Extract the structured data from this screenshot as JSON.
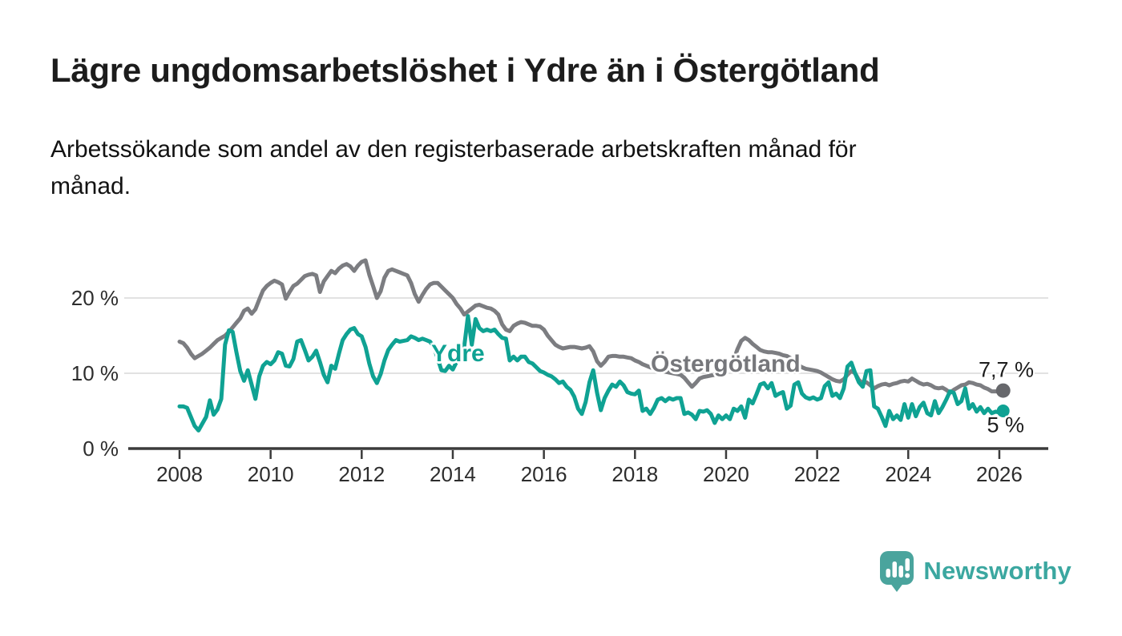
{
  "header": {
    "title": "Lägre ungdomsarbetslöshet i Ydre än i Östergötland",
    "subtitle": "Arbetssökande som andel av den registerbaserade arbetskraften månad för månad."
  },
  "chart_data": {
    "type": "line",
    "title": "Lägre ungdomsarbetslöshet i Ydre än i Östergötland",
    "subtitle": "Arbetssökande som andel av den registerbaserade arbetskraften månad för månad.",
    "unit": "%",
    "x_start": "2008-01",
    "x_end": "2026-02",
    "x_step": "1 month",
    "x_ticks": [
      2008,
      2010,
      2012,
      2014,
      2016,
      2018,
      2020,
      2022,
      2024,
      2026
    ],
    "y_ticks": [
      {
        "value": 0,
        "label": "0 %"
      },
      {
        "value": 10,
        "label": "10 %"
      },
      {
        "value": 20,
        "label": "20 %"
      }
    ],
    "ylim": [
      0,
      26.5
    ],
    "grid": true,
    "legend": "inline-labels",
    "series": [
      {
        "name": "Ydre",
        "color": "#0fa293",
        "end_label": "5 %",
        "last_value": 5.0,
        "values": [
          5.6,
          5.6,
          5.4,
          4.2,
          3.0,
          2.4,
          3.3,
          4.2,
          6.4,
          4.5,
          5.2,
          6.6,
          13.8,
          15.7,
          15.5,
          12.8,
          10.3,
          9.0,
          10.4,
          8.5,
          6.6,
          9.6,
          11.0,
          11.5,
          11.2,
          11.7,
          12.8,
          12.6,
          11.0,
          10.9,
          11.9,
          14.2,
          14.4,
          13.1,
          11.7,
          12.2,
          13.0,
          11.5,
          9.8,
          8.8,
          11.0,
          10.6,
          12.6,
          14.4,
          15.2,
          15.8,
          16.0,
          15.2,
          14.9,
          13.5,
          11.3,
          9.6,
          8.7,
          9.9,
          11.7,
          13.1,
          13.8,
          14.4,
          14.2,
          14.3,
          14.4,
          14.9,
          14.7,
          14.4,
          14.6,
          14.4,
          14.2,
          13.5,
          12.0,
          10.4,
          10.3,
          11.0,
          10.5,
          11.5,
          12.5,
          13.5,
          17.6,
          13.8,
          17.2,
          16.0,
          15.6,
          15.8,
          15.6,
          15.8,
          15.2,
          14.7,
          14.6,
          11.7,
          12.2,
          11.7,
          12.2,
          12.2,
          11.5,
          11.3,
          10.8,
          10.3,
          10.1,
          9.8,
          9.6,
          9.2,
          8.7,
          8.9,
          8.2,
          7.8,
          6.9,
          5.3,
          4.6,
          6.2,
          8.8,
          10.4,
          7.4,
          5.1,
          6.7,
          7.7,
          8.5,
          8.2,
          8.9,
          8.4,
          7.5,
          7.3,
          7.2,
          7.7,
          5.0,
          5.3,
          4.6,
          5.4,
          6.5,
          6.7,
          6.3,
          6.7,
          6.5,
          6.7,
          6.7,
          4.6,
          4.8,
          4.5,
          3.9,
          5.0,
          4.9,
          5.1,
          4.6,
          3.4,
          4.4,
          3.9,
          4.4,
          3.9,
          5.3,
          5.0,
          5.6,
          4.1,
          6.5,
          6.0,
          7.2,
          8.5,
          8.7,
          8.0,
          8.7,
          7.0,
          7.3,
          7.5,
          5.3,
          5.7,
          8.5,
          8.8,
          7.3,
          6.8,
          6.6,
          6.8,
          6.5,
          6.7,
          8.3,
          8.8,
          7.0,
          7.3,
          6.7,
          8.0,
          10.9,
          11.4,
          10.0,
          8.8,
          8.2,
          10.3,
          10.4,
          5.6,
          5.3,
          4.2,
          3.0,
          5.0,
          3.9,
          4.4,
          3.8,
          5.9,
          4.1,
          5.9,
          4.3,
          5.5,
          6.1,
          4.7,
          4.4,
          6.3,
          4.7,
          5.5,
          6.5,
          7.6,
          7.4,
          5.9,
          6.3,
          8.0,
          5.3,
          5.9,
          4.9,
          5.5,
          4.7,
          5.3,
          4.7,
          4.9,
          4.8,
          5.0
        ]
      },
      {
        "name": "Östergötland",
        "color": "#7c7d81",
        "dot_color": "#67686c",
        "end_label": "7,7 %",
        "last_value": 7.7,
        "values": [
          14.2,
          14.0,
          13.4,
          12.6,
          12.0,
          12.3,
          12.6,
          13.0,
          13.4,
          13.9,
          14.4,
          14.7,
          15.0,
          15.5,
          16.1,
          16.7,
          17.3,
          18.3,
          18.6,
          17.9,
          18.5,
          19.8,
          21.0,
          21.6,
          22.0,
          22.3,
          22.1,
          21.8,
          19.9,
          20.8,
          21.6,
          21.9,
          22.4,
          22.9,
          23.1,
          23.2,
          23.0,
          20.8,
          22.2,
          22.9,
          23.6,
          23.3,
          23.9,
          24.3,
          24.5,
          24.2,
          23.6,
          24.3,
          24.8,
          25.0,
          23.1,
          21.6,
          20.0,
          20.9,
          22.7,
          23.6,
          23.8,
          23.6,
          23.4,
          23.2,
          23.0,
          22.0,
          20.5,
          19.5,
          20.4,
          21.2,
          21.8,
          22.0,
          22.0,
          21.5,
          21.0,
          20.5,
          20.0,
          19.2,
          18.6,
          17.8,
          18.2,
          18.6,
          19.0,
          19.1,
          18.9,
          18.7,
          18.6,
          18.3,
          17.8,
          16.5,
          15.8,
          15.6,
          16.3,
          16.6,
          16.8,
          16.7,
          16.5,
          16.3,
          16.3,
          16.2,
          15.8,
          15.0,
          14.4,
          13.8,
          13.5,
          13.3,
          13.4,
          13.5,
          13.5,
          13.4,
          13.3,
          13.4,
          13.6,
          12.9,
          11.6,
          11.0,
          11.5,
          12.2,
          12.3,
          12.3,
          12.2,
          12.2,
          12.1,
          12.0,
          11.7,
          11.5,
          11.2,
          11.0,
          10.8,
          10.6,
          10.5,
          10.4,
          10.2,
          10.1,
          10.0,
          9.9,
          9.8,
          9.4,
          8.8,
          8.2,
          8.7,
          9.3,
          9.5,
          9.6,
          9.7,
          9.8,
          10.0,
          10.2,
          10.5,
          10.8,
          11.8,
          13.2,
          14.3,
          14.7,
          14.4,
          13.9,
          13.5,
          13.1,
          12.9,
          12.8,
          12.8,
          12.7,
          12.6,
          12.4,
          12.3,
          12.0,
          11.6,
          11.1,
          10.8,
          10.6,
          10.5,
          10.4,
          10.3,
          10.1,
          9.8,
          9.5,
          9.2,
          9.0,
          8.9,
          9.2,
          9.8,
          10.3,
          10.0,
          9.1,
          8.7,
          8.8,
          8.4,
          8.0,
          8.3,
          8.5,
          8.6,
          8.4,
          8.6,
          8.7,
          8.9,
          9.0,
          8.9,
          9.3,
          9.0,
          8.7,
          8.5,
          8.6,
          8.4,
          8.1,
          8.0,
          8.1,
          7.8,
          7.4,
          7.8,
          8.1,
          8.4,
          8.5,
          8.8,
          8.7,
          8.5,
          8.4,
          8.1,
          7.9,
          7.6,
          7.6,
          7.6,
          7.7
        ]
      }
    ],
    "colors": {
      "ydre": "#0fa293",
      "ostergotland": "#7c7d81",
      "gridline": "#d9d9d9",
      "axis": "#3b3b3b"
    }
  },
  "footer": {
    "brand": "Newsworthy",
    "brand_color": "#3ba7a0",
    "logo_icon": "speech-bubble-bar-chart-icon",
    "logo_color": "#4aa49d"
  }
}
